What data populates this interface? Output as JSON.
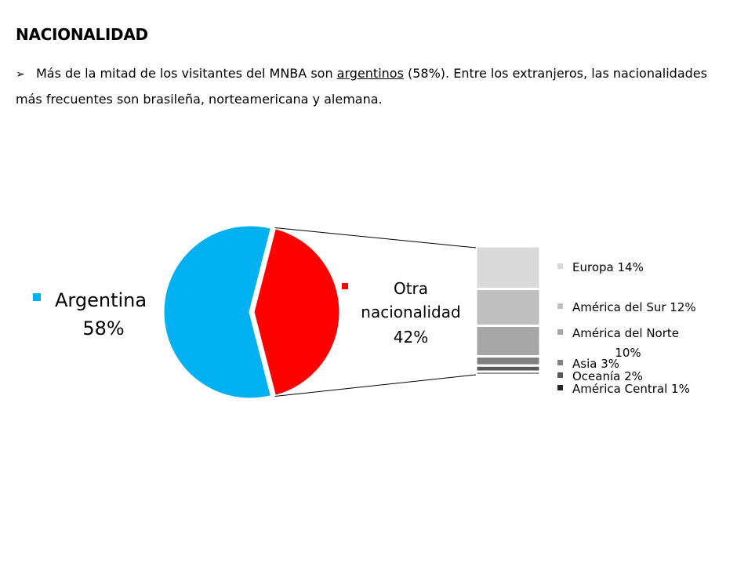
{
  "heading": "NACIONALIDAD",
  "bullet": {
    "before": "Más de la mitad de los visitantes del MNBA son ",
    "underlined": "argentinos",
    "after": " (58%). Entre los extranjeros, las nacionalidades más frecuentes son brasileña, norteamericana y alemana."
  },
  "colors": {
    "argentina": "#00b0f0",
    "otra": "#ff0000",
    "europa": "#d9d9d9",
    "sur": "#bfbfbf",
    "norte": "#a6a6a6",
    "asia": "#808080",
    "oceania": "#595959",
    "central": "#262626"
  },
  "chart_data": {
    "type": "bar-of-pie",
    "pie": {
      "slices": [
        {
          "name": "Argentina",
          "value": 58,
          "label": [
            "Argentina",
            "58%"
          ]
        },
        {
          "name": "Otra nacionalidad",
          "value": 42,
          "label": [
            "Otra",
            "nacionalidad",
            "42%"
          ]
        }
      ]
    },
    "bar": {
      "segments": [
        {
          "name": "Europa",
          "value": 14,
          "label": [
            "Europa 14%"
          ]
        },
        {
          "name": "América del Sur",
          "value": 12,
          "label": [
            "América del Sur 12%"
          ]
        },
        {
          "name": "América del Norte",
          "value": 10,
          "label": [
            "América del Norte",
            "10%"
          ]
        },
        {
          "name": "Asia",
          "value": 3,
          "label": [
            "Asia 3%"
          ]
        },
        {
          "name": "Oceanía",
          "value": 2,
          "label": [
            "Oceanía 2%"
          ]
        },
        {
          "name": "América Central",
          "value": 1,
          "label": [
            "América Central 1%"
          ]
        }
      ]
    }
  }
}
